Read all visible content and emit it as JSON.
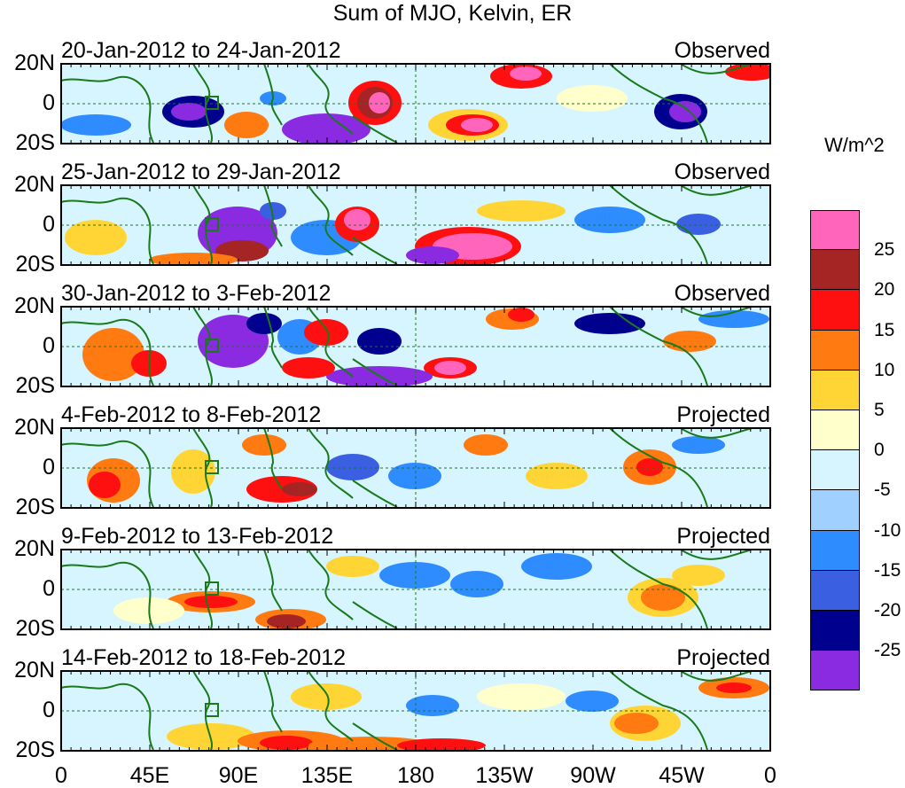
{
  "title": "Sum of MJO, Kelvin, ER",
  "panels": [
    {
      "date_range": "20-Jan-2012 to 24-Jan-2012",
      "status": "Observed"
    },
    {
      "date_range": "25-Jan-2012 to 29-Jan-2012",
      "status": "Observed"
    },
    {
      "date_range": "30-Jan-2012 to 3-Feb-2012",
      "status": "Observed"
    },
    {
      "date_range": "4-Feb-2012 to 8-Feb-2012",
      "status": "Projected"
    },
    {
      "date_range": "9-Feb-2012 to 13-Feb-2012",
      "status": "Projected"
    },
    {
      "date_range": "14-Feb-2012 to 18-Feb-2012",
      "status": "Projected"
    }
  ],
  "lat_labels": [
    "20N",
    "0",
    "20S"
  ],
  "lon_labels": [
    "0",
    "45E",
    "90E",
    "135E",
    "180",
    "135W",
    "90W",
    "45W",
    "0"
  ],
  "units": "W/m^2",
  "colorbar": {
    "labels": [
      "25",
      "20",
      "15",
      "10",
      "5",
      "0",
      "-5",
      "-10",
      "-15",
      "-20",
      "-25"
    ],
    "colors": [
      "#ff66bb",
      "#a52525",
      "#ff1010",
      "#ff7a10",
      "#ffd535",
      "#ffffcc",
      "#d7f5ff",
      "#9fd0ff",
      "#2f8cff",
      "#3a5fe0",
      "#00008f",
      "#8a2be2"
    ]
  },
  "colors": {
    "coast": "#1a7a1a",
    "background": "#d7f5ff"
  }
}
